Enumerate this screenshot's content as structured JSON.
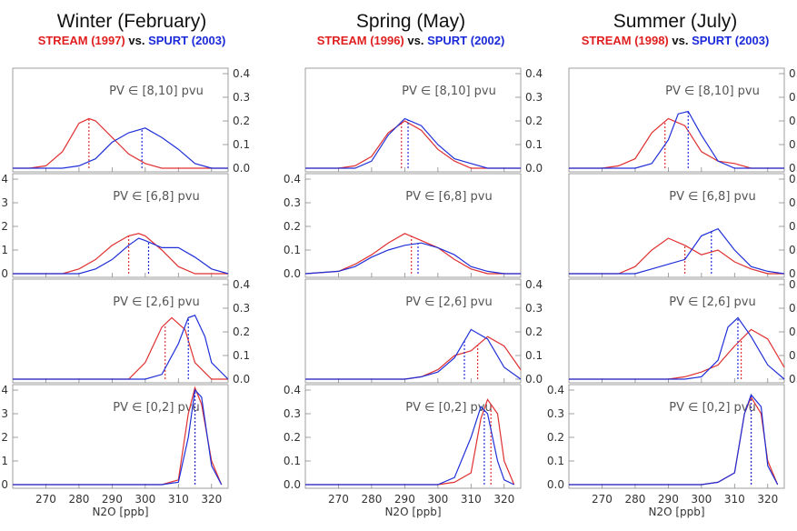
{
  "chart_data": [
    {
      "type": "line",
      "title": "Winter (February)",
      "subtitle": {
        "red": "STREAM (1997)",
        "mid": " vs. ",
        "blue": "SPURT (2003)"
      },
      "xlabel": "N2O [ppb]",
      "xlim": [
        260,
        325
      ],
      "ylim": [
        0,
        0.4
      ],
      "xticks": [
        270,
        280,
        290,
        300,
        310,
        320
      ],
      "yticks": [
        "0.0",
        "0.1",
        "0.2",
        "0.3",
        "0.4"
      ],
      "panels": [
        {
          "label": "PV ∈ [8,10] pvu",
          "yaxis": "right",
          "series": [
            {
              "color": "#e03030",
              "x": [
                260,
                265,
                270,
                275,
                280,
                283,
                285,
                290,
                295,
                300,
                305,
                310,
                315,
                320,
                325
              ],
              "y": [
                0,
                0,
                0.01,
                0.07,
                0.19,
                0.21,
                0.2,
                0.13,
                0.06,
                0.02,
                0,
                0,
                0,
                0,
                0
              ],
              "median": 283
            },
            {
              "color": "#2030d8",
              "x": [
                260,
                270,
                275,
                280,
                285,
                290,
                295,
                300,
                305,
                310,
                315,
                320,
                325
              ],
              "y": [
                0,
                0,
                0,
                0.01,
                0.04,
                0.11,
                0.15,
                0.17,
                0.13,
                0.08,
                0.02,
                0,
                0
              ],
              "median": 299
            }
          ]
        },
        {
          "label": "PV ∈ [6,8] pvu",
          "yaxis": "left",
          "series": [
            {
              "color": "#e03030",
              "x": [
                260,
                270,
                275,
                280,
                285,
                290,
                295,
                298,
                300,
                305,
                310,
                315,
                320,
                325
              ],
              "y": [
                0,
                0,
                0,
                0.02,
                0.06,
                0.12,
                0.16,
                0.17,
                0.16,
                0.1,
                0.03,
                0,
                0,
                0
              ],
              "median": 295
            },
            {
              "color": "#2030d8",
              "x": [
                260,
                275,
                280,
                285,
                290,
                295,
                298,
                300,
                305,
                310,
                315,
                320,
                325
              ],
              "y": [
                0,
                0,
                0,
                0.02,
                0.06,
                0.12,
                0.15,
                0.14,
                0.11,
                0.11,
                0.07,
                0.02,
                0
              ],
              "median": 301
            }
          ]
        },
        {
          "label": "PV ∈ [2,6] pvu",
          "yaxis": "right",
          "series": [
            {
              "color": "#e03030",
              "x": [
                260,
                290,
                295,
                300,
                305,
                308,
                312,
                315,
                320,
                325
              ],
              "y": [
                0,
                0,
                0,
                0.07,
                0.22,
                0.26,
                0.21,
                0.07,
                0,
                0
              ],
              "median": 306
            },
            {
              "color": "#2030d8",
              "x": [
                260,
                295,
                300,
                305,
                310,
                313,
                315,
                318,
                320,
                325
              ],
              "y": [
                0,
                0,
                0,
                0.02,
                0.15,
                0.26,
                0.27,
                0.18,
                0.07,
                0
              ],
              "median": 313
            }
          ]
        },
        {
          "label": "PV ∈ [0,2] pvu",
          "yaxis": "left",
          "series": [
            {
              "color": "#e03030",
              "x": [
                260,
                305,
                310,
                313,
                315,
                317,
                320,
                323
              ],
              "y": [
                0,
                0,
                0.02,
                0.3,
                0.41,
                0.34,
                0.1,
                0
              ],
              "median": 315
            },
            {
              "color": "#2030d8",
              "x": [
                260,
                305,
                310,
                313,
                315,
                317,
                320,
                323
              ],
              "y": [
                0,
                0,
                0.01,
                0.2,
                0.4,
                0.37,
                0.08,
                0
              ],
              "median": 315
            }
          ]
        }
      ]
    },
    {
      "type": "line",
      "title": "Spring (May)",
      "subtitle": {
        "red": "STREAM (1996)",
        "mid": " vs. ",
        "blue": "SPURT (2002)"
      },
      "xlabel": "N2O [ppb]",
      "xlim": [
        260,
        325
      ],
      "ylim": [
        0,
        0.4
      ],
      "xticks": [
        270,
        280,
        290,
        300,
        310,
        320
      ],
      "yticks": [
        "0.0",
        "0.1",
        "0.2",
        "0.3",
        "0.4"
      ],
      "panels": [
        {
          "label": "PV ∈ [8,10] pvu",
          "yaxis": "right",
          "series": [
            {
              "color": "#e03030",
              "x": [
                260,
                270,
                275,
                280,
                285,
                290,
                295,
                300,
                305,
                310,
                315,
                320,
                325
              ],
              "y": [
                0,
                0,
                0.01,
                0.05,
                0.15,
                0.2,
                0.16,
                0.08,
                0.03,
                0,
                0,
                0,
                0
              ],
              "median": 289
            },
            {
              "color": "#2030d8",
              "x": [
                260,
                270,
                275,
                280,
                285,
                290,
                295,
                300,
                305,
                310,
                315,
                320,
                325
              ],
              "y": [
                0,
                0,
                0,
                0.03,
                0.14,
                0.21,
                0.18,
                0.1,
                0.04,
                0.02,
                0,
                0,
                0
              ],
              "median": 291
            }
          ]
        },
        {
          "label": "PV ∈ [6,8] pvu",
          "yaxis": "left",
          "series": [
            {
              "color": "#e03030",
              "x": [
                260,
                270,
                275,
                280,
                285,
                290,
                295,
                300,
                305,
                310,
                315,
                320,
                325
              ],
              "y": [
                0,
                0.01,
                0.04,
                0.08,
                0.13,
                0.17,
                0.14,
                0.11,
                0.06,
                0.02,
                0,
                0,
                0
              ],
              "median": 292
            },
            {
              "color": "#2030d8",
              "x": [
                260,
                270,
                275,
                280,
                285,
                290,
                295,
                300,
                305,
                310,
                315,
                320,
                325
              ],
              "y": [
                0,
                0.01,
                0.03,
                0.07,
                0.1,
                0.12,
                0.13,
                0.11,
                0.08,
                0.03,
                0.01,
                0,
                0
              ],
              "median": 294
            }
          ]
        },
        {
          "label": "PV ∈ [2,6] pvu",
          "yaxis": "right",
          "series": [
            {
              "color": "#e03030",
              "x": [
                260,
                290,
                295,
                300,
                305,
                310,
                315,
                320,
                325
              ],
              "y": [
                0,
                0,
                0.01,
                0.04,
                0.1,
                0.12,
                0.18,
                0.14,
                0.04
              ],
              "median": 312
            },
            {
              "color": "#2030d8",
              "x": [
                260,
                290,
                295,
                300,
                305,
                310,
                315,
                320,
                325
              ],
              "y": [
                0,
                0,
                0.01,
                0.03,
                0.09,
                0.21,
                0.17,
                0.05,
                0
              ],
              "median": 308
            }
          ]
        },
        {
          "label": "PV ∈ [0,2] pvu",
          "yaxis": "left",
          "series": [
            {
              "color": "#e03030",
              "x": [
                260,
                300,
                305,
                310,
                313,
                315,
                318,
                320,
                323
              ],
              "y": [
                0,
                0,
                0.01,
                0.05,
                0.28,
                0.36,
                0.3,
                0.1,
                0
              ],
              "median": 316
            },
            {
              "color": "#2030d8",
              "x": [
                260,
                300,
                305,
                310,
                313,
                315,
                318,
                320,
                323
              ],
              "y": [
                0,
                0,
                0.03,
                0.2,
                0.33,
                0.3,
                0.1,
                0.02,
                0
              ],
              "median": 314
            }
          ]
        }
      ]
    },
    {
      "type": "line",
      "title": "Summer (July)",
      "subtitle": {
        "red": "STREAM (1998)",
        "mid": " vs. ",
        "blue": "SPURT (2003)"
      },
      "xlabel": "N2O [ppb]",
      "xlim": [
        260,
        325
      ],
      "ylim": [
        0,
        0.4
      ],
      "xticks": [
        270,
        280,
        290,
        300,
        310,
        320
      ],
      "yticks": [
        "0.0",
        "0.1",
        "0.2",
        "0.3",
        "0.4"
      ],
      "panels": [
        {
          "label": "PV ∈ [8,10] pvu",
          "yaxis": "right",
          "series": [
            {
              "color": "#e03030",
              "x": [
                260,
                270,
                275,
                280,
                285,
                290,
                295,
                300,
                305,
                310,
                315,
                320,
                325
              ],
              "y": [
                0,
                0,
                0.01,
                0.04,
                0.15,
                0.21,
                0.18,
                0.07,
                0.03,
                0.02,
                0,
                0,
                0
              ],
              "median": 289
            },
            {
              "color": "#2030d8",
              "x": [
                260,
                280,
                285,
                290,
                293,
                296,
                300,
                305,
                310,
                315,
                320,
                325
              ],
              "y": [
                0,
                0,
                0.02,
                0.12,
                0.23,
                0.24,
                0.14,
                0.03,
                0,
                0,
                0,
                0
              ],
              "median": 296
            }
          ]
        },
        {
          "label": "PV ∈ [6,8] pvu",
          "yaxis": "right",
          "series": [
            {
              "color": "#e03030",
              "x": [
                260,
                275,
                280,
                285,
                290,
                295,
                300,
                305,
                310,
                315,
                320,
                325
              ],
              "y": [
                0,
                0,
                0.03,
                0.1,
                0.15,
                0.12,
                0.08,
                0.1,
                0.05,
                0.02,
                0,
                0
              ],
              "median": 295
            },
            {
              "color": "#2030d8",
              "x": [
                260,
                280,
                285,
                290,
                295,
                300,
                305,
                310,
                315,
                320,
                325
              ],
              "y": [
                0,
                0,
                0.02,
                0.04,
                0.06,
                0.16,
                0.19,
                0.1,
                0.03,
                0.01,
                0
              ],
              "median": 303
            }
          ]
        },
        {
          "label": "PV ∈ [2,6] pvu",
          "yaxis": "right",
          "series": [
            {
              "color": "#e03030",
              "x": [
                260,
                290,
                295,
                300,
                305,
                310,
                315,
                320,
                325
              ],
              "y": [
                0,
                0,
                0.01,
                0.03,
                0.06,
                0.14,
                0.21,
                0.17,
                0.05
              ],
              "median": 312
            },
            {
              "color": "#2030d8",
              "x": [
                260,
                290,
                295,
                300,
                305,
                308,
                311,
                315,
                320,
                325
              ],
              "y": [
                0,
                0,
                0,
                0.01,
                0.08,
                0.22,
                0.26,
                0.18,
                0.06,
                0
              ],
              "median": 311
            }
          ]
        },
        {
          "label": "PV ∈ [0,2] pvu",
          "yaxis": "left",
          "series": [
            {
              "color": "#e03030",
              "x": [
                260,
                300,
                305,
                310,
                313,
                315,
                318,
                320,
                323
              ],
              "y": [
                0,
                0,
                0.01,
                0.05,
                0.3,
                0.37,
                0.3,
                0.1,
                0
              ],
              "median": 315
            },
            {
              "color": "#2030d8",
              "x": [
                260,
                300,
                305,
                310,
                313,
                315,
                318,
                320,
                323
              ],
              "y": [
                0,
                0,
                0.01,
                0.05,
                0.3,
                0.38,
                0.33,
                0.08,
                0
              ],
              "median": 315
            }
          ]
        }
      ]
    }
  ]
}
